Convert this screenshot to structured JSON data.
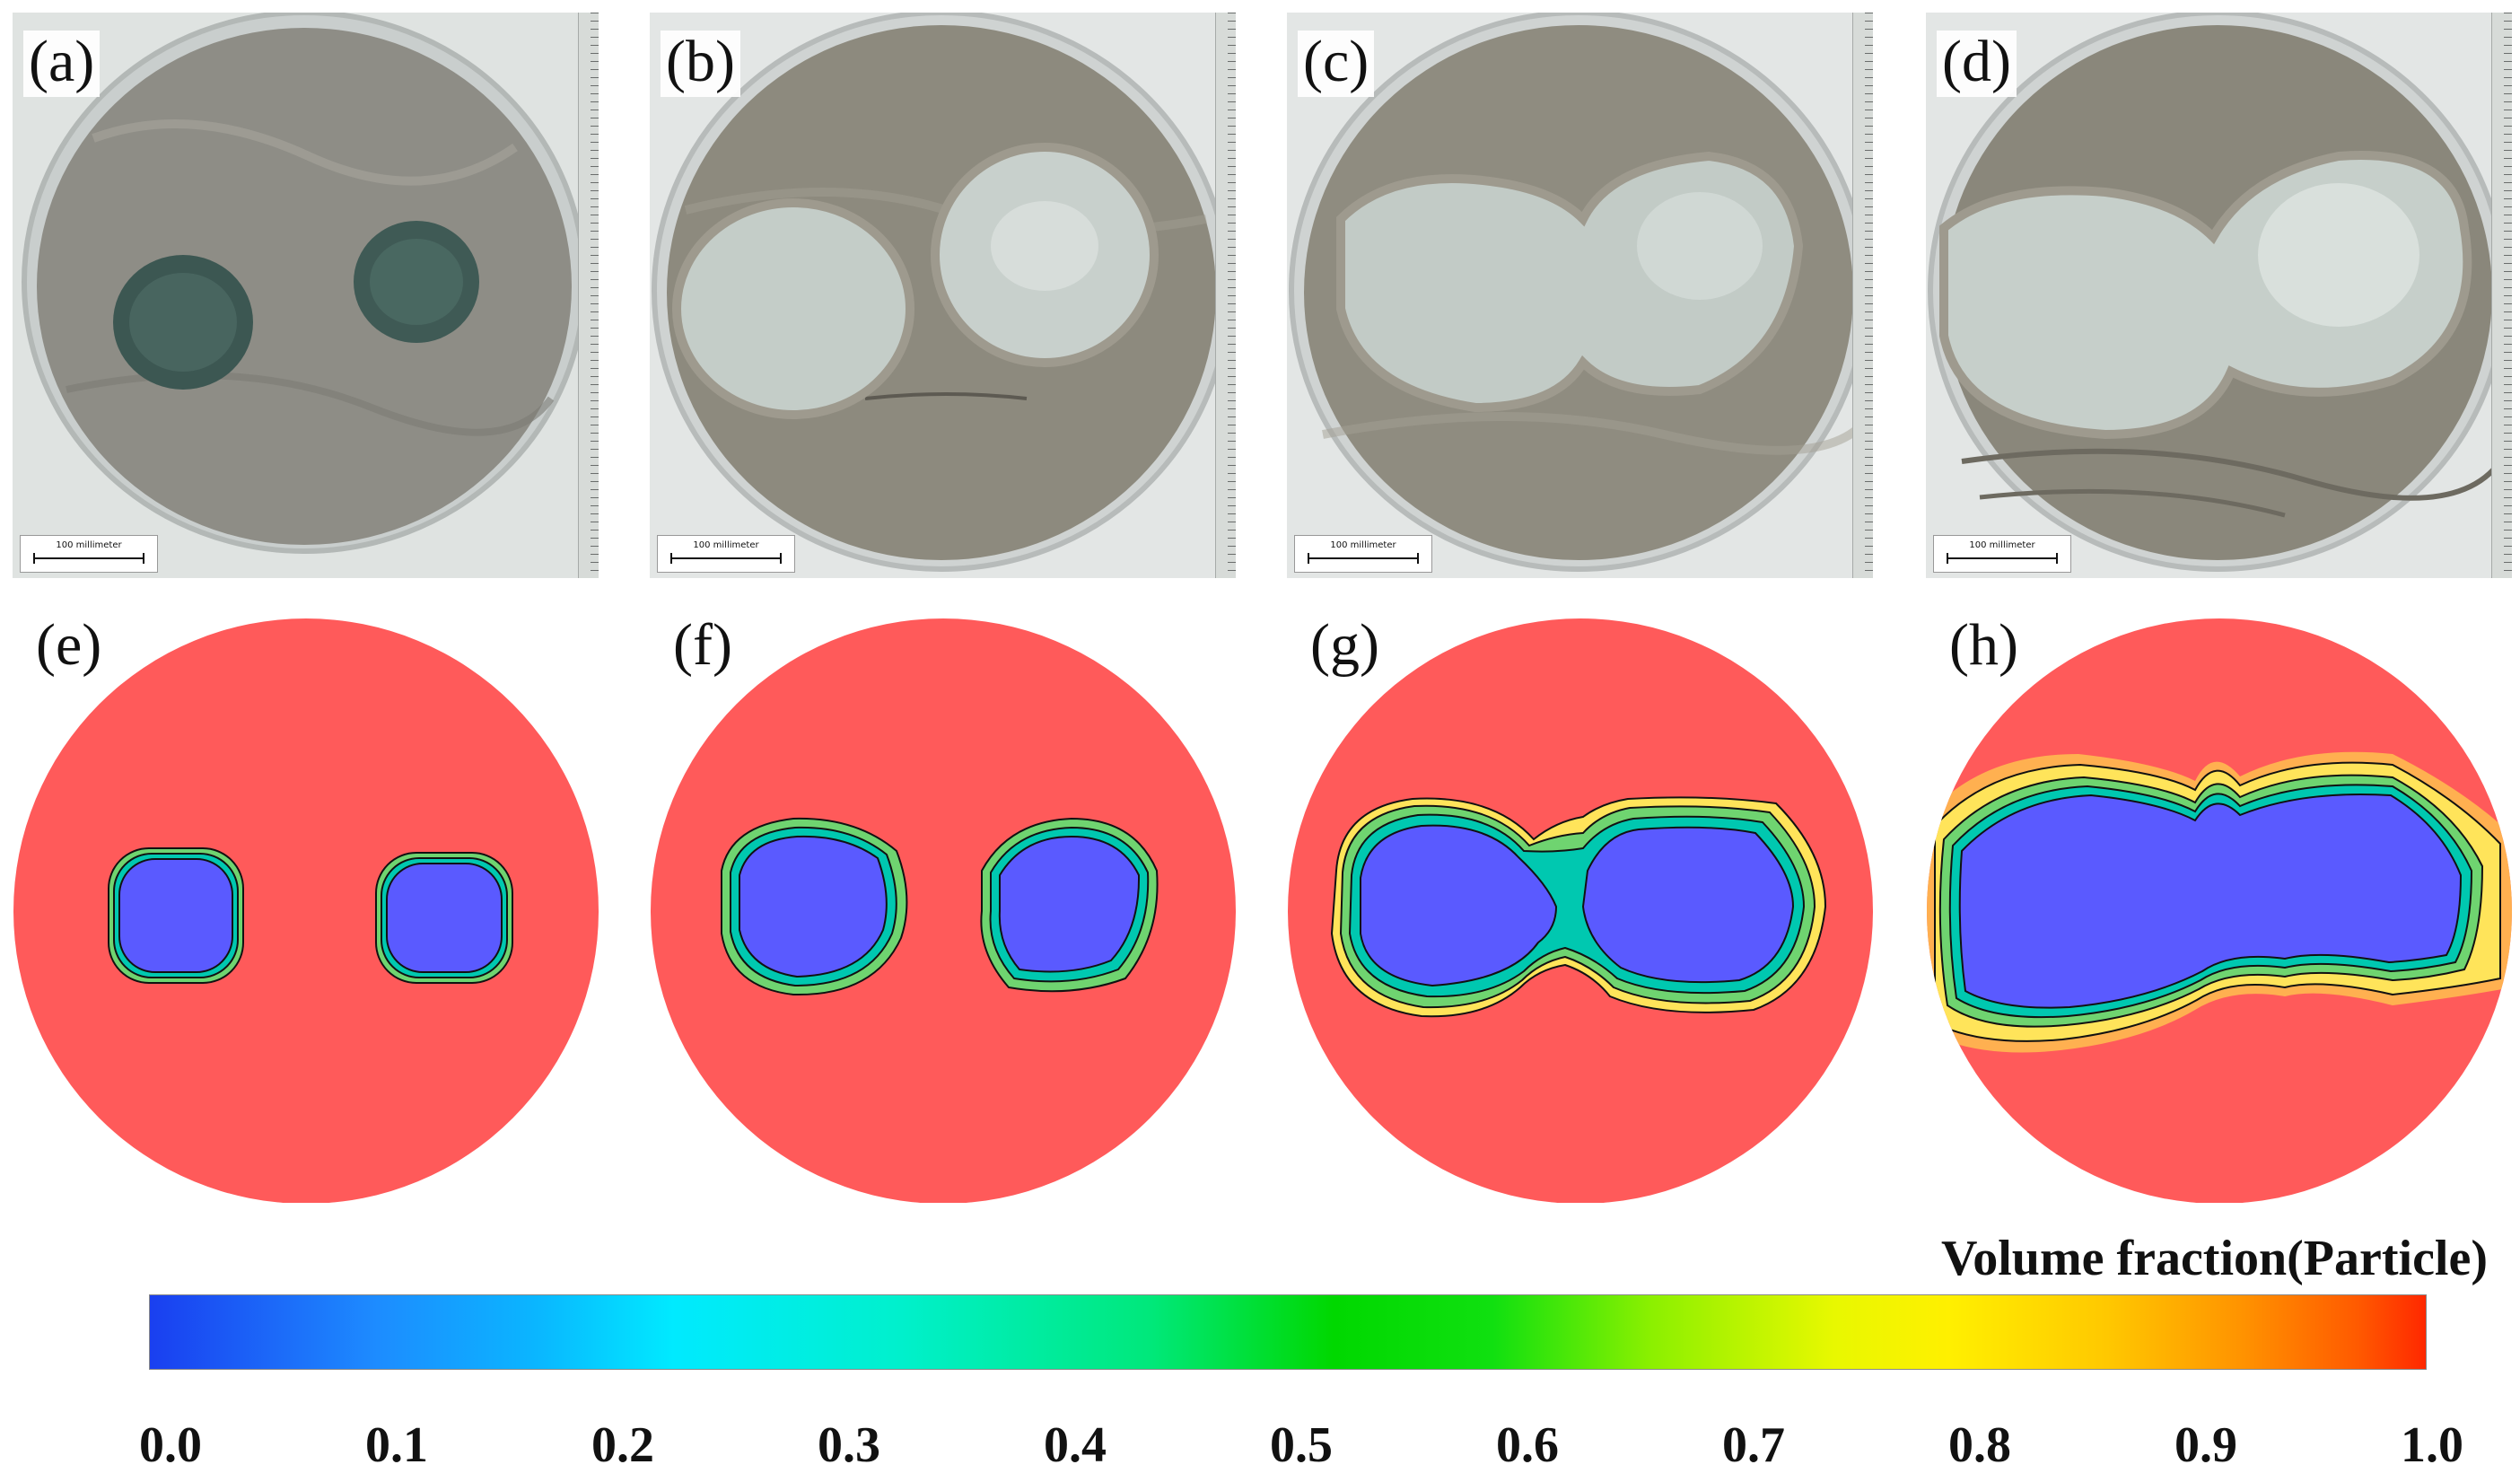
{
  "photo_panels": [
    {
      "label": "(a)",
      "scale_text": "100 millimeter"
    },
    {
      "label": "(b)",
      "scale_text": "100 millimeter"
    },
    {
      "label": "(c)",
      "scale_text": "100 millimeter"
    },
    {
      "label": "(d)",
      "scale_text": "100 millimeter"
    }
  ],
  "sim_panels": [
    {
      "label": "(e)"
    },
    {
      "label": "(f)"
    },
    {
      "label": "(g)"
    },
    {
      "label": "(h)"
    }
  ],
  "colorbar": {
    "title": "Volume fraction(Particle)",
    "min": 0.0,
    "max": 1.0,
    "ticks": [
      "0.0",
      "0.1",
      "0.2",
      "0.3",
      "0.4",
      "0.5",
      "0.6",
      "0.7",
      "0.8",
      "0.9",
      "1.0"
    ]
  },
  "colors": {
    "sand_region": "#ff5a5a",
    "water_region": "#5a5aff",
    "photo_sand": "#8f8c80",
    "photo_water": "#c4cdc8"
  }
}
